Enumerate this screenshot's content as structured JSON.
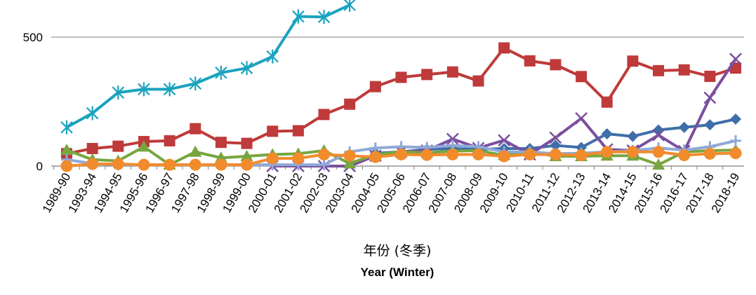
{
  "chart_data": {
    "type": "line",
    "title": "",
    "xlabel": "年份 (冬季)",
    "xlabel_en": "Year (Winter)",
    "ylabel": "",
    "ylim": [
      0,
      640
    ],
    "yticks": [
      0,
      500
    ],
    "grid": true,
    "categories": [
      "1989-90",
      "1993-94",
      "1994-95",
      "1995-96",
      "1996-97",
      "1997-98",
      "1998-99",
      "1999-00",
      "2000-01",
      "2001-02",
      "2002-03",
      "2003-04",
      "2004-05",
      "2005-06",
      "2006-07",
      "2007-08",
      "2008-09",
      "2009-10",
      "2010-11",
      "2011-12",
      "2012-13",
      "2013-14",
      "2014-15",
      "2015-16",
      "2016-17",
      "2017-18",
      "2018-19"
    ],
    "series": [
      {
        "name": "teal asterisk",
        "color": "#1aa3bf",
        "marker": "asterisk",
        "values": [
          150,
          205,
          285,
          298,
          298,
          320,
          362,
          380,
          425,
          580,
          578,
          625,
          null,
          null,
          null,
          null,
          null,
          null,
          null,
          null,
          null,
          null,
          null,
          null,
          null,
          null,
          null
        ]
      },
      {
        "name": "red square",
        "color": "#bf3a3a",
        "marker": "square",
        "values": [
          48,
          68,
          77,
          95,
          98,
          145,
          92,
          88,
          135,
          137,
          200,
          240,
          308,
          344,
          355,
          365,
          330,
          458,
          408,
          393,
          347,
          248,
          407,
          370,
          373,
          348,
          380
        ]
      },
      {
        "name": "blue diamond",
        "color": "#3f6fa8",
        "marker": "diamond",
        "values": [
          null,
          null,
          null,
          null,
          null,
          null,
          null,
          null,
          null,
          null,
          null,
          null,
          50,
          55,
          65,
          68,
          65,
          68,
          68,
          80,
          72,
          125,
          115,
          140,
          150,
          160,
          182
        ]
      },
      {
        "name": "purple x",
        "color": "#7b4f9e",
        "marker": "x",
        "values": [
          null,
          null,
          null,
          null,
          null,
          null,
          null,
          null,
          0,
          0,
          0,
          0,
          40,
          55,
          60,
          105,
          70,
          100,
          45,
          110,
          185,
          65,
          60,
          120,
          58,
          265,
          415
        ]
      },
      {
        "name": "green triangle",
        "color": "#77a63f",
        "marker": "triangle",
        "values": [
          62,
          25,
          20,
          75,
          5,
          55,
          32,
          38,
          45,
          48,
          60,
          10,
          45,
          55,
          52,
          58,
          60,
          42,
          55,
          38,
          38,
          40,
          40,
          5,
          55,
          60,
          62
        ]
      },
      {
        "name": "light blue plus",
        "color": "#8fa9d8",
        "marker": "plus",
        "values": [
          25,
          10,
          5,
          5,
          5,
          5,
          5,
          5,
          5,
          5,
          5,
          55,
          70,
          75,
          72,
          80,
          75,
          55,
          55,
          48,
          50,
          55,
          60,
          70,
          62,
          75,
          98
        ]
      },
      {
        "name": "orange circle",
        "color": "#f28b2c",
        "marker": "circle",
        "values": [
          0,
          8,
          8,
          5,
          5,
          5,
          5,
          5,
          30,
          30,
          45,
          40,
          35,
          45,
          43,
          45,
          45,
          38,
          45,
          45,
          42,
          55,
          55,
          55,
          42,
          48,
          50
        ]
      }
    ]
  }
}
